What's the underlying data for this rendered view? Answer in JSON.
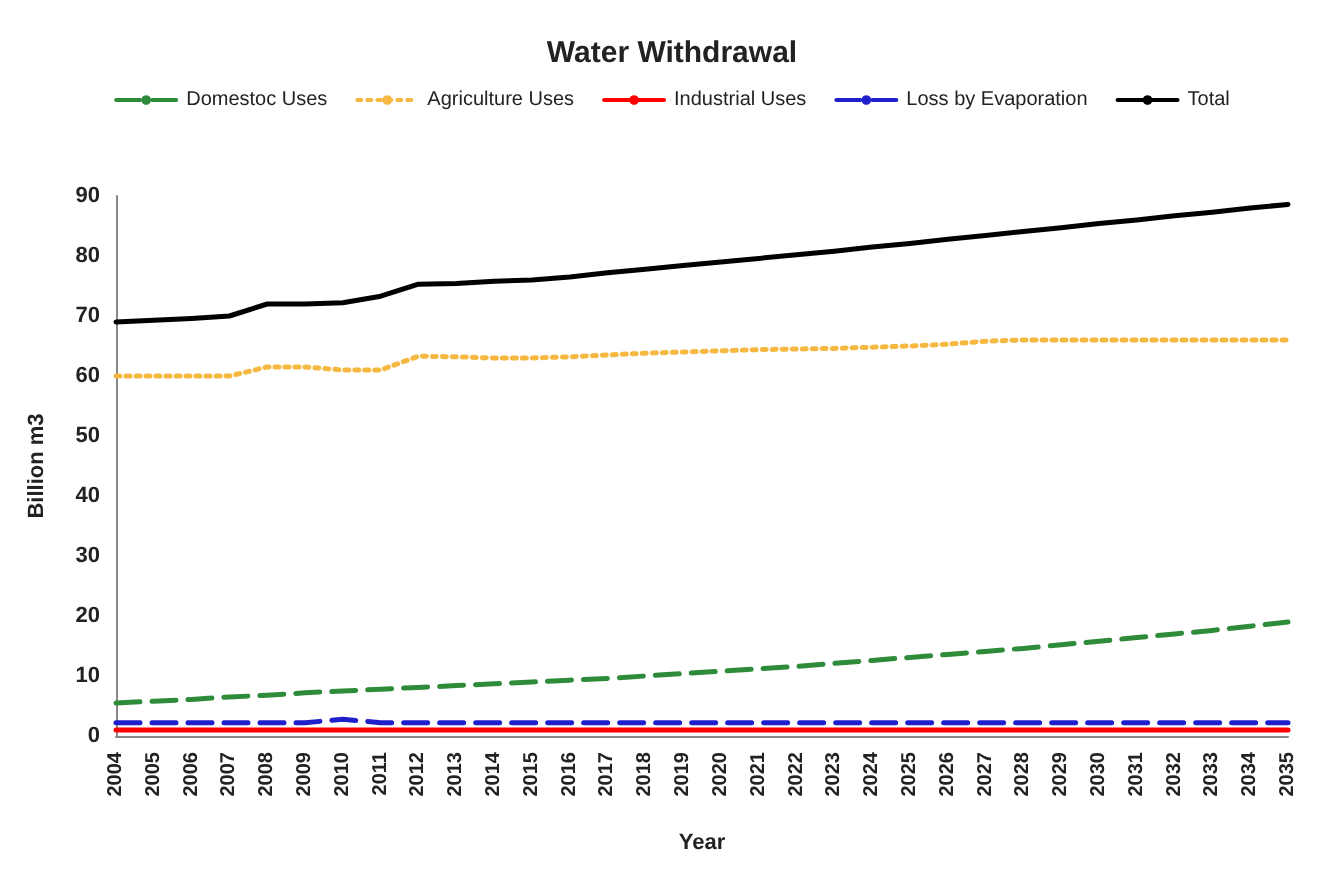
{
  "chart_data": {
    "type": "line",
    "title": "Water Withdrawal",
    "xlabel": "Year",
    "ylabel": "Billion m3",
    "categories": [
      "2004",
      "2005",
      "2006",
      "2007",
      "2008",
      "2009",
      "2010",
      "2011",
      "2012",
      "2013",
      "2014",
      "2015",
      "2016",
      "2017",
      "2018",
      "2019",
      "2020",
      "2021",
      "2022",
      "2023",
      "2024",
      "2025",
      "2026",
      "2027",
      "2028",
      "2029",
      "2030",
      "2031",
      "2032",
      "2033",
      "2034",
      "2035"
    ],
    "series": [
      {
        "name": "Domestoc Uses",
        "color": "#2e8b3a",
        "line_style": "dashed",
        "values": [
          5.5,
          5.8,
          6.1,
          6.5,
          6.8,
          7.2,
          7.5,
          7.8,
          8.1,
          8.4,
          8.7,
          9,
          9.3,
          9.6,
          10,
          10.4,
          10.8,
          11.2,
          11.6,
          12.1,
          12.6,
          13.1,
          13.6,
          14.1,
          14.6,
          15.2,
          15.8,
          16.4,
          17,
          17.6,
          18.3,
          19
        ]
      },
      {
        "name": "Agriculture Uses",
        "color": "#f5b942",
        "line_style": "dotted",
        "values": [
          60,
          60,
          60,
          60,
          61.5,
          61.5,
          61,
          61,
          63.3,
          63.2,
          63,
          63,
          63.2,
          63.5,
          63.8,
          64,
          64.2,
          64.4,
          64.5,
          64.6,
          64.8,
          65,
          65.3,
          65.8,
          66,
          66,
          66,
          66,
          66,
          66,
          66,
          66
        ]
      },
      {
        "name": "Industrial Uses",
        "color": "#ff0000",
        "line_style": "solid",
        "values": [
          1,
          1,
          1,
          1,
          1,
          1,
          1,
          1,
          1,
          1,
          1,
          1,
          1,
          1,
          1,
          1,
          1,
          1,
          1,
          1,
          1,
          1,
          1,
          1,
          1,
          1,
          1,
          1,
          1,
          1,
          1,
          1
        ]
      },
      {
        "name": "Loss by Evaporation",
        "color": "#1f1fcc",
        "line_style": "dashed",
        "values": [
          2.2,
          2.2,
          2.2,
          2.2,
          2.2,
          2.2,
          2.8,
          2.2,
          2.2,
          2.2,
          2.2,
          2.2,
          2.2,
          2.2,
          2.2,
          2.2,
          2.2,
          2.2,
          2.2,
          2.2,
          2.2,
          2.2,
          2.2,
          2.2,
          2.2,
          2.2,
          2.2,
          2.2,
          2.2,
          2.2,
          2.2,
          2.2
        ]
      },
      {
        "name": "Total",
        "color": "#000000",
        "line_style": "solid",
        "values": [
          69,
          69.3,
          69.6,
          70,
          72,
          72,
          72.2,
          73.3,
          75.3,
          75.4,
          75.8,
          76,
          76.5,
          77.2,
          77.8,
          78.4,
          79,
          79.6,
          80.2,
          80.8,
          81.5,
          82.1,
          82.8,
          83.4,
          84.1,
          84.7,
          85.4,
          86,
          86.7,
          87.3,
          88,
          88.6
        ]
      }
    ],
    "ylim": [
      0,
      90
    ],
    "yticks": [
      0,
      10,
      20,
      30,
      40,
      50,
      60,
      70,
      80,
      90
    ],
    "grid": false,
    "legend": "top",
    "marker": "none"
  }
}
